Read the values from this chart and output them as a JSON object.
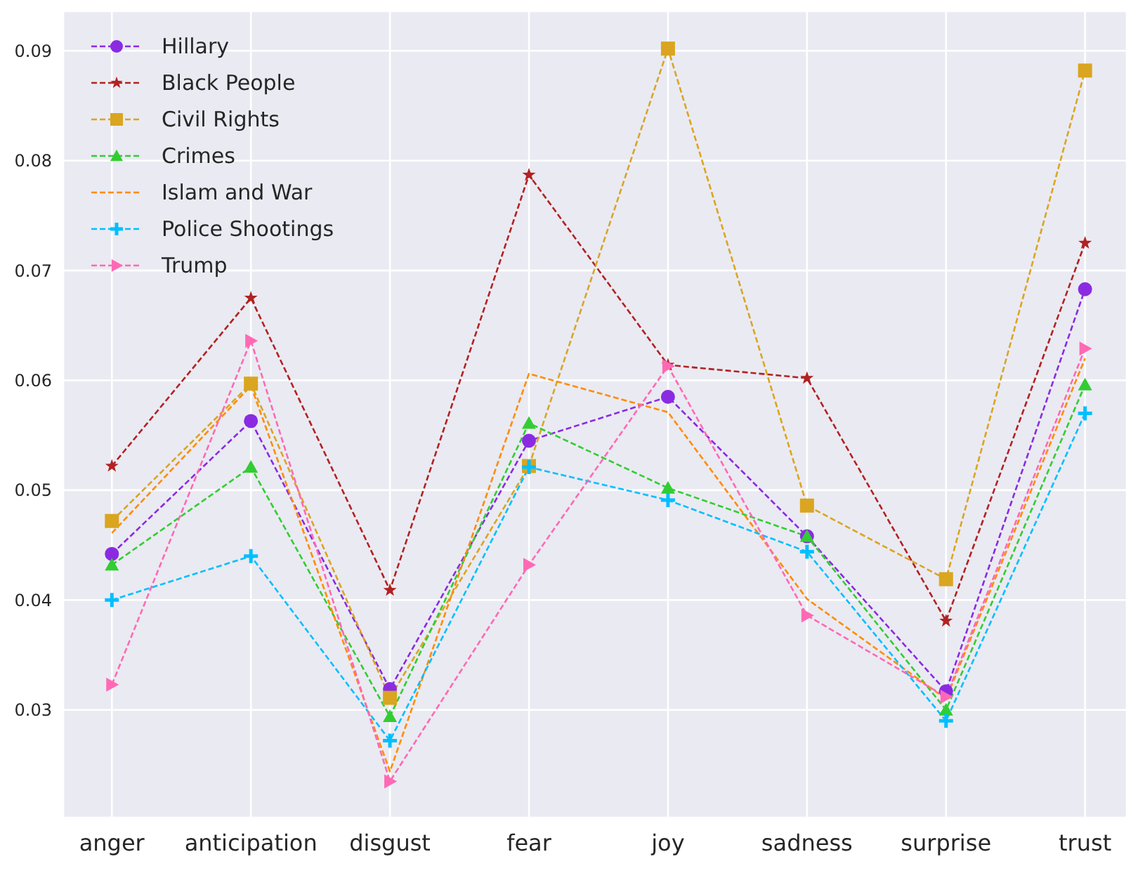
{
  "chart_data": {
    "type": "line",
    "categories": [
      "anger",
      "anticipation",
      "disgust",
      "fear",
      "joy",
      "sadness",
      "surprise",
      "trust"
    ],
    "series": [
      {
        "name": "Hillary",
        "color": "#8a2be2",
        "marker": "circle",
        "values": [
          0.0442,
          0.0563,
          0.0319,
          0.0545,
          0.0585,
          0.0458,
          0.0317,
          0.0683
        ]
      },
      {
        "name": "Black People",
        "color": "#b22222",
        "marker": "star",
        "values": [
          0.0522,
          0.0675,
          0.0409,
          0.0787,
          0.0614,
          0.0602,
          0.0381,
          0.0725
        ]
      },
      {
        "name": "Civil Rights",
        "color": "#daa520",
        "marker": "square",
        "values": [
          0.0472,
          0.0597,
          0.0311,
          0.0522,
          0.0902,
          0.0486,
          0.0419,
          0.0882
        ]
      },
      {
        "name": "Crimes",
        "color": "#32cd32",
        "marker": "triangle",
        "values": [
          0.0432,
          0.0521,
          0.0294,
          0.0561,
          0.0502,
          0.0458,
          0.03,
          0.0596
        ]
      },
      {
        "name": "Islam and War",
        "color": "#ff8c00",
        "marker": "none",
        "values": [
          0.0461,
          0.0595,
          0.0244,
          0.0606,
          0.0571,
          0.0401,
          0.031,
          0.062
        ]
      },
      {
        "name": "Police Shootings",
        "color": "#00bfff",
        "marker": "cross",
        "values": [
          0.04,
          0.044,
          0.0272,
          0.0521,
          0.0491,
          0.0444,
          0.029,
          0.057
        ]
      },
      {
        "name": "Trump",
        "color": "#ff69b4",
        "marker": "triangle-right",
        "values": [
          0.0323,
          0.0636,
          0.0235,
          0.0432,
          0.0613,
          0.0386,
          0.0312,
          0.0629
        ]
      }
    ],
    "ylim": [
      0.0202,
      0.0936
    ],
    "yticks": [
      0.03,
      0.04,
      0.05,
      0.06,
      0.07,
      0.08,
      0.09
    ],
    "grid": true,
    "legend": "top left",
    "line_style": "dashed"
  }
}
